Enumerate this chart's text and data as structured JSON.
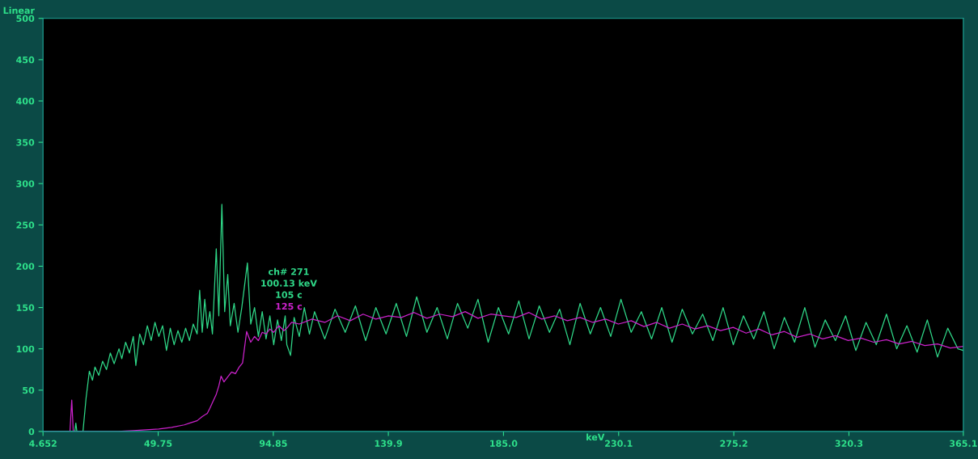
{
  "chart_data": {
    "type": "line",
    "xlabel": "keV",
    "annotations": [
      "Linear",
      "ch# 271",
      "100.13 keV",
      "105 c",
      "125 c"
    ],
    "xlim": [
      4.652,
      365.1
    ],
    "xticks": [
      4.652,
      49.75,
      94.85,
      139.9,
      {
        "value": 185.0,
        "label": "185.0"
      },
      230.1,
      275.2,
      320.3,
      365.1
    ],
    "ylim": [
      0,
      500
    ],
    "yticks": [
      0,
      50,
      100,
      150,
      200,
      250,
      300,
      350,
      400,
      450,
      500
    ],
    "grid": false,
    "legend": false,
    "marker": "none",
    "line_style": "solid",
    "series": [
      {
        "color": "#2fd888",
        "x": [
          4.652,
          15,
          17.1,
          17.5,
          17.9,
          20.3,
          21.5,
          22.8,
          24,
          25,
          26.5,
          28,
          29.5,
          31,
          32.5,
          34.4,
          35.5,
          37,
          38.5,
          40,
          41,
          42.5,
          44,
          45.5,
          47,
          48.5,
          50,
          51.5,
          53,
          54.5,
          56,
          57.5,
          59,
          60.5,
          62,
          63.5,
          65,
          66,
          67,
          68,
          69,
          70,
          71,
          72.5,
          73.5,
          74.7,
          75.8,
          77,
          78,
          79.5,
          81,
          82.5,
          84.7,
          86,
          87.5,
          89,
          90.5,
          92,
          93.5,
          95,
          96.5,
          98,
          99.5,
          100.13,
          101.6,
          103,
          105,
          107,
          109,
          111,
          115,
          119,
          123,
          127,
          131,
          135,
          139,
          143,
          147,
          151,
          155,
          159,
          163,
          167,
          171,
          175,
          179,
          183,
          187,
          191,
          195,
          199,
          203,
          207,
          211,
          215,
          219,
          223,
          227,
          231,
          235,
          239,
          243,
          247,
          251,
          255,
          259,
          263,
          267,
          271,
          275,
          279,
          283,
          287,
          291,
          295,
          299,
          303,
          307,
          311,
          315,
          319,
          323,
          327,
          331,
          335,
          339,
          343,
          347,
          351,
          355,
          359,
          363,
          365.1
        ],
        "values": [
          0,
          0,
          0,
          10,
          0,
          0,
          40,
          73,
          62,
          78,
          68,
          85,
          75,
          95,
          82,
          100,
          88,
          108,
          95,
          115,
          80,
          118,
          105,
          128,
          110,
          132,
          115,
          128,
          98,
          125,
          105,
          122,
          108,
          125,
          110,
          130,
          118,
          171,
          120,
          160,
          125,
          145,
          118,
          221,
          140,
          275,
          145,
          190,
          128,
          155,
          120,
          150,
          204,
          130,
          150,
          115,
          145,
          112,
          140,
          105,
          135,
          110,
          140,
          105,
          92,
          138,
          115,
          150,
          118,
          145,
          112,
          148,
          120,
          152,
          110,
          150,
          118,
          155,
          115,
          163,
          120,
          150,
          112,
          155,
          125,
          160,
          108,
          150,
          118,
          158,
          112,
          152,
          120,
          148,
          105,
          155,
          118,
          150,
          115,
          160,
          120,
          145,
          112,
          150,
          108,
          148,
          118,
          142,
          110,
          150,
          105,
          140,
          112,
          145,
          100,
          138,
          108,
          150,
          102,
          135,
          110,
          140,
          98,
          132,
          105,
          142,
          100,
          128,
          96,
          135,
          90,
          125,
          100,
          98
        ]
      },
      {
        "color": "#cc22cc",
        "x": [
          4.652,
          15.2,
          15.9,
          16.5,
          34,
          40,
          45,
          50,
          55,
          60,
          62,
          65,
          67,
          69,
          70,
          71,
          72.5,
          73.5,
          74.4,
          75.5,
          77,
          78.5,
          80,
          81.5,
          82.8,
          84.4,
          86,
          87.5,
          89,
          90.5,
          92,
          93.5,
          95,
          97,
          99,
          100.13,
          102,
          105,
          110,
          115,
          120,
          125,
          130,
          135,
          140,
          145,
          150,
          155,
          160,
          165,
          170,
          175,
          180,
          185,
          190,
          195,
          200,
          205,
          210,
          215,
          220,
          225,
          230,
          235,
          240,
          245,
          250,
          255,
          260,
          265,
          270,
          275,
          280,
          285,
          290,
          295,
          300,
          305,
          310,
          315,
          320,
          325,
          330,
          335,
          340,
          345,
          350,
          355,
          360,
          365.1
        ],
        "values": [
          0,
          0,
          38,
          0,
          0,
          1,
          2,
          3,
          5,
          8,
          10,
          13,
          18,
          22,
          28,
          35,
          45,
          55,
          67,
          60,
          66,
          72,
          70,
          78,
          83,
          121,
          108,
          115,
          110,
          120,
          118,
          124,
          120,
          128,
          122,
          125,
          132,
          130,
          136,
          132,
          140,
          134,
          142,
          136,
          140,
          138,
          144,
          137,
          142,
          139,
          145,
          137,
          142,
          140,
          138,
          144,
          136,
          140,
          134,
          138,
          132,
          136,
          130,
          134,
          127,
          132,
          125,
          130,
          124,
          128,
          122,
          126,
          119,
          124,
          117,
          121,
          114,
          118,
          112,
          116,
          110,
          113,
          108,
          111,
          106,
          109,
          104,
          106,
          101,
          103
        ]
      }
    ]
  }
}
